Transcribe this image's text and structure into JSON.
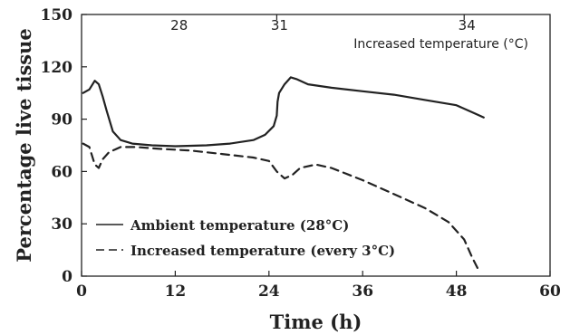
{
  "chart_data": {
    "type": "line",
    "xlabel": "Time (h)",
    "ylabel": "Percentage live tissue",
    "xlim": [
      0,
      60
    ],
    "ylim": [
      0,
      150
    ],
    "x_ticks": [
      0,
      12,
      24,
      36,
      48,
      60
    ],
    "y_ticks": [
      0,
      30,
      60,
      90,
      120,
      150
    ],
    "grid": false,
    "legend_position": "bottom-left",
    "top_axis": {
      "label": "Increased temperature (°C)",
      "ticks": [
        {
          "x": 25,
          "label": "31"
        },
        {
          "x": 49,
          "label": "34"
        }
      ],
      "extra_labels": [
        {
          "x": 12.5,
          "label": "28"
        }
      ]
    },
    "series": [
      {
        "name": "Ambient temperature (28°C)",
        "style": "solid",
        "color": "#222222",
        "points": [
          [
            0.2,
            105
          ],
          [
            1.0,
            107
          ],
          [
            1.7,
            112
          ],
          [
            2.2,
            110
          ],
          [
            2.7,
            103
          ],
          [
            3.2,
            95
          ],
          [
            4.0,
            83
          ],
          [
            5.0,
            78
          ],
          [
            6.5,
            76
          ],
          [
            9.0,
            75
          ],
          [
            12.0,
            74.5
          ],
          [
            16.0,
            75
          ],
          [
            19.0,
            76
          ],
          [
            22.0,
            78
          ],
          [
            23.5,
            81
          ],
          [
            24.6,
            86
          ],
          [
            25.0,
            92
          ],
          [
            25.1,
            100
          ],
          [
            25.3,
            105
          ],
          [
            26.0,
            110
          ],
          [
            26.8,
            114
          ],
          [
            27.5,
            113
          ],
          [
            29.0,
            110
          ],
          [
            32.0,
            108
          ],
          [
            36.0,
            106
          ],
          [
            40.0,
            104
          ],
          [
            44.0,
            101
          ],
          [
            48.0,
            98
          ],
          [
            50.0,
            94
          ],
          [
            51.5,
            91
          ]
        ]
      },
      {
        "name": "Increased temperature (every 3°C)",
        "style": "dashed",
        "color": "#222222",
        "points": [
          [
            0.2,
            76
          ],
          [
            1.0,
            74
          ],
          [
            1.7,
            64
          ],
          [
            2.2,
            62
          ],
          [
            2.7,
            67
          ],
          [
            3.5,
            71
          ],
          [
            5.0,
            74
          ],
          [
            7.0,
            74
          ],
          [
            10.0,
            73
          ],
          [
            14.0,
            72
          ],
          [
            18.0,
            70
          ],
          [
            22.0,
            68
          ],
          [
            24.0,
            66
          ],
          [
            25.0,
            60
          ],
          [
            26.0,
            56
          ],
          [
            27.0,
            58
          ],
          [
            28.0,
            62
          ],
          [
            30.0,
            64
          ],
          [
            32.0,
            62
          ],
          [
            36.0,
            55
          ],
          [
            40.0,
            47
          ],
          [
            44.0,
            39
          ],
          [
            47.0,
            31
          ],
          [
            49.0,
            21
          ],
          [
            50.0,
            11
          ],
          [
            51.0,
            2
          ]
        ]
      }
    ]
  }
}
